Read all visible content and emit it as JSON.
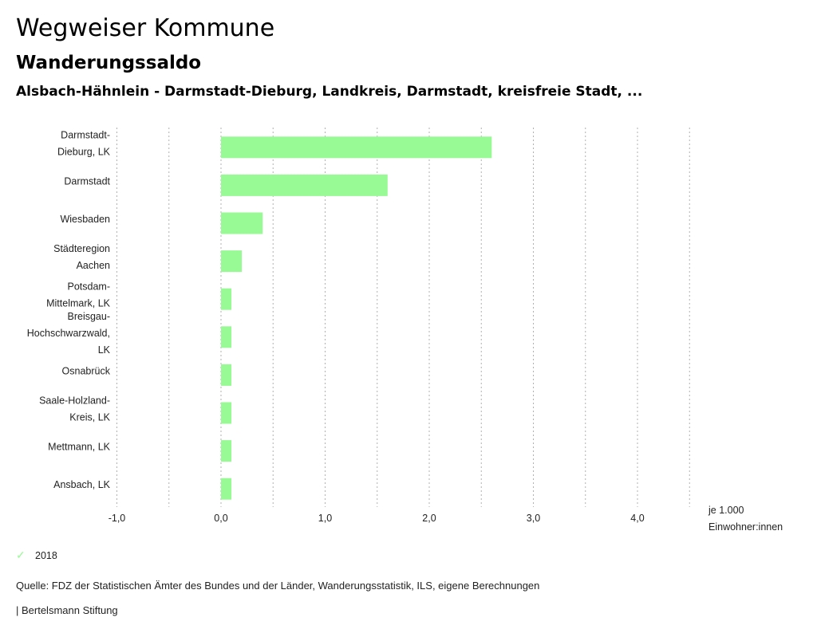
{
  "header": {
    "title": "Wegweiser Kommune",
    "subtitle": "Wanderungssaldo",
    "region": "Alsbach-Hähnlein - Darmstadt-Dieburg, Landkreis, Darmstadt, kreisfreie Stadt, ..."
  },
  "chart_data": {
    "type": "bar",
    "orientation": "horizontal",
    "categories": [
      [
        "Darmstadt-",
        "Dieburg, LK"
      ],
      [
        "Darmstadt"
      ],
      [
        "Wiesbaden"
      ],
      [
        "Städteregion",
        "Aachen"
      ],
      [
        "Potsdam-",
        "Mittelmark, LK"
      ],
      [
        "Breisgau-",
        "Hochschwarzwald,",
        "LK"
      ],
      [
        "Osnabrück"
      ],
      [
        "Saale-Holzland-",
        "Kreis, LK"
      ],
      [
        "Mettmann, LK"
      ],
      [
        "Ansbach, LK"
      ]
    ],
    "series": [
      {
        "name": "2018",
        "color": "#98fa94",
        "values": [
          2.6,
          1.6,
          0.4,
          0.2,
          0.1,
          0.1,
          0.1,
          0.1,
          0.1,
          0.1
        ]
      }
    ],
    "xlim": [
      -1.0,
      4.5
    ],
    "xticks": [
      -1.0,
      0.0,
      1.0,
      2.0,
      3.0,
      4.0
    ],
    "xtick_labels": [
      "-1,0",
      "0,0",
      "1,0",
      "2,0",
      "3,0",
      "4,0"
    ],
    "gridlines": [
      -1.0,
      -0.5,
      0.0,
      0.5,
      1.0,
      1.5,
      2.0,
      2.5,
      3.0,
      3.5,
      4.0,
      4.5
    ],
    "grid": true,
    "xlabel": [
      "je 1.000",
      "Einwohner:innen"
    ],
    "legend_position": "bottom-left"
  },
  "legend": {
    "label": "2018",
    "icon": "check-icon"
  },
  "footer": {
    "source": "Quelle: FDZ der Statistischen Ämter des Bundes und der Länder, Wanderungsstatistik, ILS, eigene Berechnungen",
    "brand": "| Bertelsmann Stiftung"
  }
}
